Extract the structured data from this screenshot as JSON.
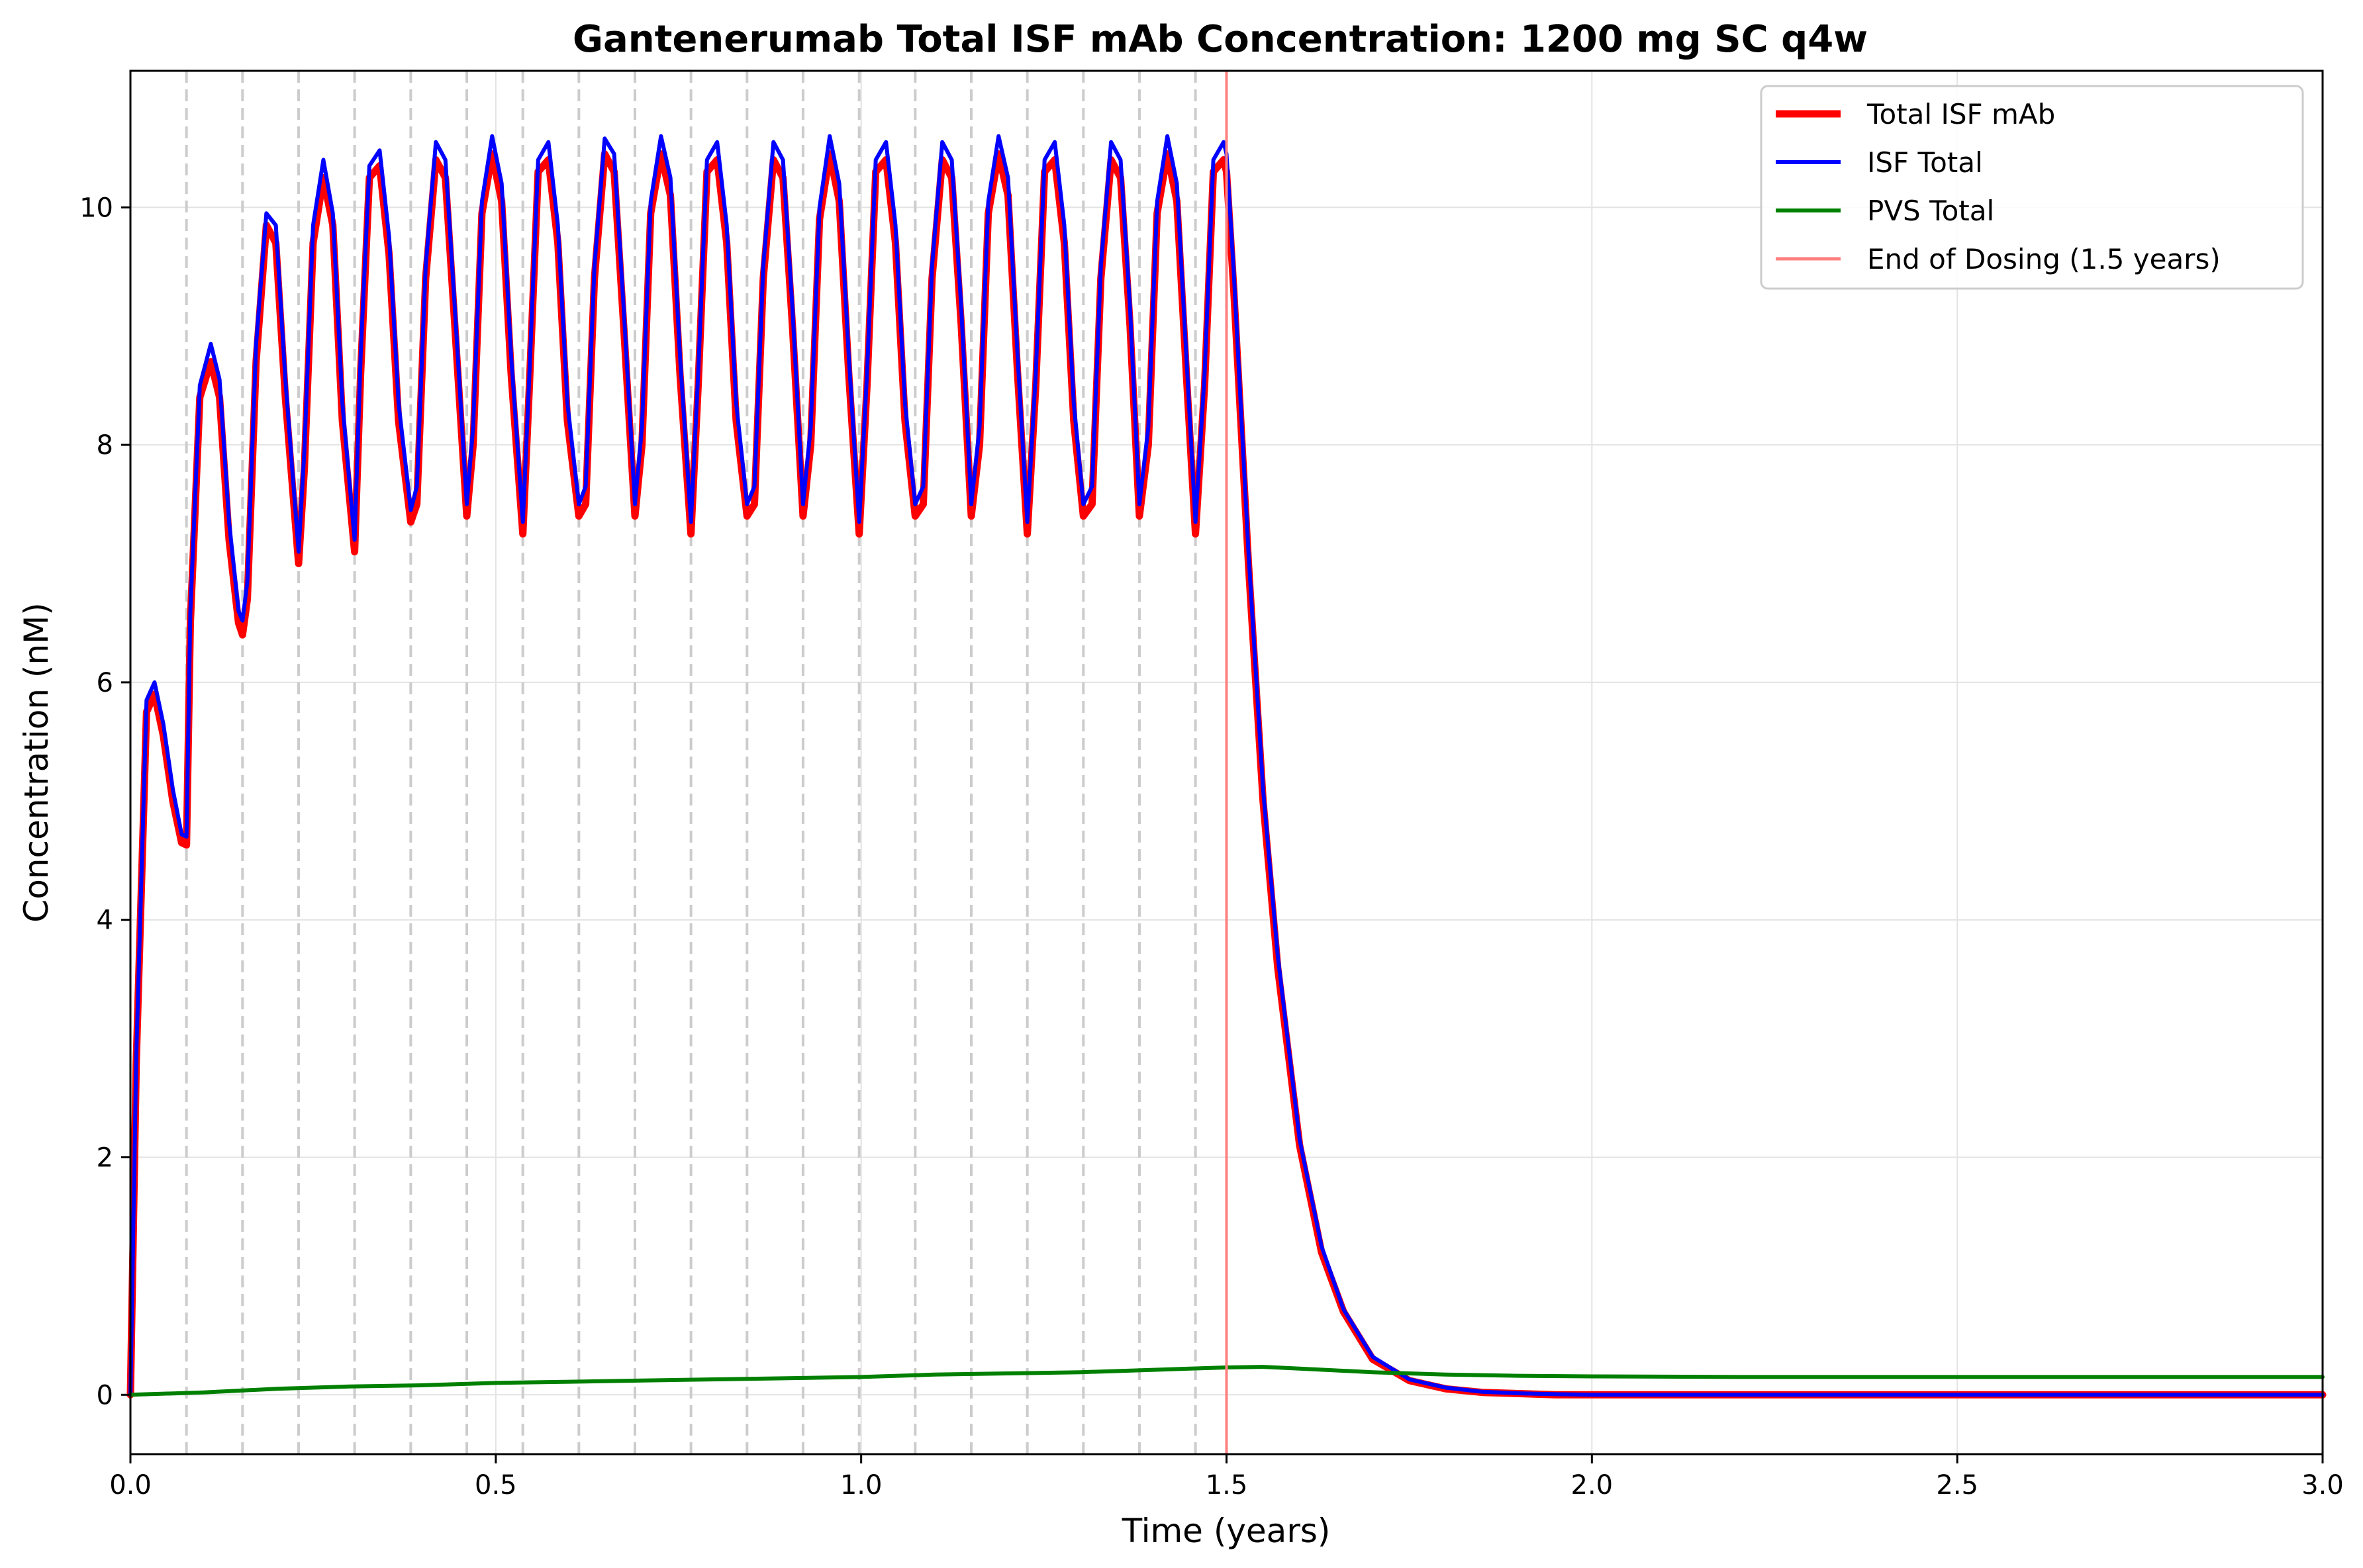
{
  "chart_data": {
    "type": "line",
    "title": "Gantenerumab Total ISF mAb Concentration: 1200 mg SC q4w",
    "xlabel": "Time (years)",
    "ylabel": "Concentration (nM)",
    "xlim": [
      0,
      3.0
    ],
    "ylim": [
      -0.5,
      11.15
    ],
    "xticks": [
      0,
      0.5,
      1.0,
      1.5,
      2.0,
      2.5,
      3.0
    ],
    "xtick_labels": [
      "0.0",
      "0.5",
      "1.0",
      "1.5",
      "2.0",
      "2.5",
      "3.0"
    ],
    "yticks": [
      0,
      2,
      4,
      6,
      8,
      10
    ],
    "ytick_labels": [
      "0",
      "2",
      "4",
      "6",
      "8",
      "10"
    ],
    "grid": true,
    "legend_position": "top-right",
    "dose_lines": [
      0.0767,
      0.1534,
      0.2301,
      0.3068,
      0.3836,
      0.4603,
      0.537,
      0.6137,
      0.6904,
      0.7671,
      0.8438,
      0.9205,
      0.9973,
      1.074,
      1.1507,
      1.2274,
      1.3041,
      1.3808,
      1.4575
    ],
    "end_of_dosing": 1.5,
    "series": [
      {
        "name": "Total ISF mAb",
        "color": "#ff0000",
        "x": [
          0.0,
          0.008,
          0.022,
          0.033,
          0.045,
          0.058,
          0.07,
          0.0767,
          0.082,
          0.095,
          0.11,
          0.122,
          0.135,
          0.148,
          0.1534,
          0.16,
          0.172,
          0.186,
          0.199,
          0.212,
          0.2301,
          0.238,
          0.25,
          0.264,
          0.277,
          0.29,
          0.3068,
          0.315,
          0.327,
          0.341,
          0.354,
          0.367,
          0.3836,
          0.392,
          0.404,
          0.418,
          0.431,
          0.444,
          0.4603,
          0.469,
          0.481,
          0.495,
          0.508,
          0.521,
          0.537,
          0.546,
          0.558,
          0.572,
          0.585,
          0.598,
          0.6137,
          0.623,
          0.635,
          0.649,
          0.662,
          0.675,
          0.6904,
          0.7,
          0.712,
          0.726,
          0.739,
          0.752,
          0.7671,
          0.777,
          0.789,
          0.803,
          0.816,
          0.829,
          0.8438,
          0.854,
          0.866,
          0.88,
          0.893,
          0.906,
          0.9205,
          0.931,
          0.943,
          0.957,
          0.97,
          0.983,
          0.9973,
          1.008,
          1.02,
          1.034,
          1.047,
          1.06,
          1.074,
          1.085,
          1.097,
          1.111,
          1.124,
          1.137,
          1.1507,
          1.162,
          1.174,
          1.188,
          1.201,
          1.214,
          1.2274,
          1.239,
          1.251,
          1.265,
          1.278,
          1.291,
          1.3041,
          1.316,
          1.328,
          1.342,
          1.355,
          1.368,
          1.3808,
          1.393,
          1.405,
          1.419,
          1.432,
          1.445,
          1.4575,
          1.47,
          1.482,
          1.496,
          1.5,
          1.51,
          1.53,
          1.55,
          1.57,
          1.6,
          1.63,
          1.66,
          1.7,
          1.75,
          1.8,
          1.85,
          1.9,
          1.95,
          2.0,
          2.1,
          2.2,
          2.4,
          2.6,
          2.8,
          3.0
        ],
        "y": [
          0.0,
          2.8,
          5.75,
          5.9,
          5.55,
          5.0,
          4.65,
          4.63,
          6.5,
          8.4,
          8.7,
          8.4,
          7.2,
          6.5,
          6.4,
          6.7,
          8.7,
          9.85,
          9.7,
          8.4,
          7.0,
          7.8,
          9.7,
          10.25,
          9.85,
          8.2,
          7.1,
          8.6,
          10.25,
          10.35,
          9.6,
          8.2,
          7.35,
          7.5,
          9.4,
          10.4,
          10.25,
          9.0,
          7.4,
          8.0,
          9.95,
          10.45,
          10.05,
          8.6,
          7.25,
          8.5,
          10.3,
          10.4,
          9.7,
          8.2,
          7.4,
          7.5,
          9.4,
          10.45,
          10.3,
          9.0,
          7.4,
          8.0,
          9.95,
          10.45,
          10.1,
          8.6,
          7.25,
          8.5,
          10.3,
          10.4,
          9.7,
          8.2,
          7.4,
          7.5,
          9.4,
          10.4,
          10.25,
          9.0,
          7.4,
          8.0,
          9.9,
          10.45,
          10.05,
          8.6,
          7.25,
          8.5,
          10.3,
          10.4,
          9.7,
          8.2,
          7.4,
          7.5,
          9.4,
          10.4,
          10.25,
          9.0,
          7.4,
          8.0,
          9.95,
          10.45,
          10.1,
          8.6,
          7.25,
          8.5,
          10.3,
          10.4,
          9.7,
          8.2,
          7.4,
          7.5,
          9.4,
          10.4,
          10.25,
          9.0,
          7.4,
          8.0,
          9.95,
          10.45,
          10.05,
          8.6,
          7.25,
          8.5,
          10.3,
          10.4,
          10.3,
          9.3,
          7.0,
          5.0,
          3.6,
          2.1,
          1.2,
          0.7,
          0.3,
          0.12,
          0.05,
          0.02,
          0.01,
          0.0,
          0.0,
          0.0,
          0.0,
          0.0,
          0.0,
          0.0,
          0.0
        ]
      },
      {
        "name": "ISF Total",
        "color": "#0000ff",
        "x": [
          0.0,
          0.008,
          0.022,
          0.033,
          0.045,
          0.058,
          0.07,
          0.0767,
          0.082,
          0.095,
          0.11,
          0.122,
          0.135,
          0.148,
          0.1534,
          0.16,
          0.172,
          0.186,
          0.199,
          0.212,
          0.2301,
          0.238,
          0.25,
          0.264,
          0.277,
          0.29,
          0.3068,
          0.315,
          0.327,
          0.341,
          0.354,
          0.367,
          0.3836,
          0.392,
          0.404,
          0.418,
          0.431,
          0.444,
          0.4603,
          0.469,
          0.481,
          0.495,
          0.508,
          0.521,
          0.537,
          0.546,
          0.558,
          0.572,
          0.585,
          0.598,
          0.6137,
          0.623,
          0.635,
          0.649,
          0.662,
          0.675,
          0.6904,
          0.7,
          0.712,
          0.726,
          0.739,
          0.752,
          0.7671,
          0.777,
          0.789,
          0.803,
          0.816,
          0.829,
          0.8438,
          0.854,
          0.866,
          0.88,
          0.893,
          0.906,
          0.9205,
          0.931,
          0.943,
          0.957,
          0.97,
          0.983,
          0.9973,
          1.008,
          1.02,
          1.034,
          1.047,
          1.06,
          1.074,
          1.085,
          1.097,
          1.111,
          1.124,
          1.137,
          1.1507,
          1.162,
          1.174,
          1.188,
          1.201,
          1.214,
          1.2274,
          1.239,
          1.251,
          1.265,
          1.278,
          1.291,
          1.3041,
          1.316,
          1.328,
          1.342,
          1.355,
          1.368,
          1.3808,
          1.393,
          1.405,
          1.419,
          1.432,
          1.445,
          1.4575,
          1.47,
          1.482,
          1.496,
          1.5,
          1.51,
          1.53,
          1.55,
          1.57,
          1.6,
          1.63,
          1.66,
          1.7,
          1.75,
          1.8,
          1.85,
          1.9,
          1.95,
          2.0,
          2.1,
          2.2,
          2.4,
          2.6,
          2.8,
          3.0
        ],
        "y": [
          0.0,
          2.85,
          5.85,
          6.0,
          5.65,
          5.1,
          4.72,
          4.7,
          6.6,
          8.5,
          8.85,
          8.55,
          7.35,
          6.6,
          6.52,
          6.85,
          8.85,
          9.95,
          9.85,
          8.55,
          7.1,
          7.95,
          9.85,
          10.4,
          9.95,
          8.35,
          7.2,
          8.75,
          10.35,
          10.48,
          9.75,
          8.35,
          7.45,
          7.65,
          9.5,
          10.55,
          10.4,
          9.15,
          7.5,
          8.15,
          10.05,
          10.6,
          10.2,
          8.75,
          7.35,
          8.6,
          10.4,
          10.55,
          9.85,
          8.35,
          7.5,
          7.65,
          9.5,
          10.58,
          10.45,
          9.15,
          7.5,
          8.15,
          10.05,
          10.6,
          10.25,
          8.75,
          7.35,
          8.6,
          10.4,
          10.55,
          9.85,
          8.35,
          7.5,
          7.65,
          9.5,
          10.55,
          10.4,
          9.15,
          7.5,
          8.15,
          10.0,
          10.6,
          10.2,
          8.75,
          7.35,
          8.6,
          10.4,
          10.55,
          9.85,
          8.35,
          7.5,
          7.65,
          9.5,
          10.55,
          10.4,
          9.15,
          7.5,
          8.15,
          10.05,
          10.6,
          10.25,
          8.75,
          7.35,
          8.6,
          10.4,
          10.55,
          9.85,
          8.35,
          7.5,
          7.65,
          9.5,
          10.55,
          10.4,
          9.15,
          7.5,
          8.15,
          10.05,
          10.6,
          10.2,
          8.75,
          7.35,
          8.6,
          10.4,
          10.55,
          10.45,
          9.45,
          7.1,
          5.1,
          3.7,
          2.15,
          1.25,
          0.72,
          0.32,
          0.13,
          0.06,
          0.025,
          0.012,
          0.005,
          0.0,
          0.0,
          0.0,
          0.0,
          0.0,
          0.0,
          0.0
        ]
      },
      {
        "name": "PVS Total",
        "color": "#008000",
        "x": [
          0.0,
          0.1,
          0.2,
          0.3,
          0.4,
          0.5,
          0.6,
          0.7,
          0.8,
          0.9,
          1.0,
          1.1,
          1.2,
          1.3,
          1.4,
          1.5,
          1.55,
          1.6,
          1.7,
          1.8,
          1.9,
          2.0,
          2.2,
          2.5,
          3.0
        ],
        "y": [
          0.0,
          0.02,
          0.05,
          0.07,
          0.08,
          0.1,
          0.11,
          0.12,
          0.13,
          0.14,
          0.15,
          0.17,
          0.18,
          0.19,
          0.21,
          0.23,
          0.235,
          0.22,
          0.19,
          0.17,
          0.16,
          0.155,
          0.15,
          0.15,
          0.15
        ]
      }
    ],
    "legend": [
      {
        "label": "Total ISF mAb",
        "color": "#ff0000"
      },
      {
        "label": "ISF Total",
        "color": "#0000ff"
      },
      {
        "label": "PVS Total",
        "color": "#008000"
      },
      {
        "label": "End of Dosing (1.5 years)",
        "color": "#ff8080"
      }
    ]
  }
}
